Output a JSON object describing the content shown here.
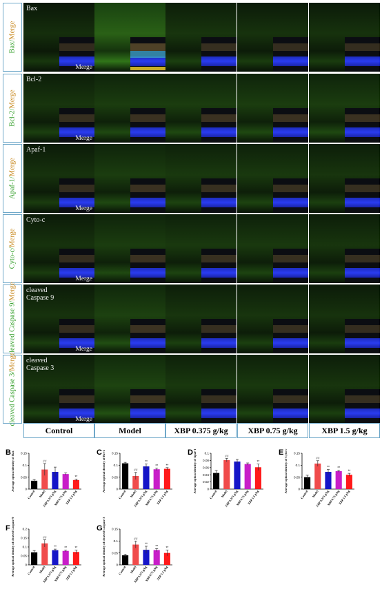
{
  "row_labels": [
    {
      "marker": "Bax",
      "sep": "/",
      "merge": "Merge"
    },
    {
      "marker": "Bcl-2",
      "sep": "/",
      "merge": "Merge"
    },
    {
      "marker": "Apaf-1",
      "sep": "/",
      "merge": "Merge"
    },
    {
      "marker": "Cyto-c",
      "sep": "/",
      "merge": "Merge"
    },
    {
      "marker": "cleaved Caspase 9",
      "sep": "/",
      "merge": "Merge"
    },
    {
      "marker": "cleaved Caspase 3",
      "sep": "/",
      "merge": "Merge"
    }
  ],
  "cell_labels": [
    "Bax",
    "Bcl-2",
    "Apaf-1",
    "Cyto-c",
    "cleaved\nCaspase 9",
    "cleaved\nCaspase 3"
  ],
  "merge_label": "Merge",
  "column_labels": [
    "Control",
    "Model",
    "XBP 0.375 g/kg",
    "XBP 0.75 g/kg",
    "XBP 1.5 g/kg"
  ],
  "colors": {
    "control": "#000000",
    "model": "#f04b4b",
    "xbp_low": "#1515c8",
    "xbp_mid": "#c81ec8",
    "xbp_high": "#ff1a1a",
    "green": "#37a02d",
    "orange": "#c8891f",
    "frame": "#6fa8c9"
  },
  "chart_data": [
    {
      "panel": "B",
      "type": "bar",
      "ylabel": "Average optical density of Bax",
      "categories": [
        "Control",
        "Model",
        "XBP 0.375 g/kg",
        "XBP 0.75 g/kg",
        "XBP 1.5 g/kg"
      ],
      "values": [
        0.035,
        0.082,
        0.072,
        0.063,
        0.038
      ],
      "errors": [
        0.005,
        0.025,
        0.02,
        0.005,
        0.004
      ],
      "ylim": [
        0,
        0.15
      ],
      "ticks": [
        0,
        0.05,
        0.1,
        0.15
      ],
      "marks": [
        "",
        "##",
        "",
        "",
        "**"
      ]
    },
    {
      "panel": "C",
      "type": "bar",
      "ylabel": "Average optical density of Bcl-2",
      "categories": [
        "Control",
        "Model",
        "XBP 0.375 g/kg",
        "XBP 0.75 g/kg",
        "XBP 1.5 g/kg"
      ],
      "values": [
        0.108,
        0.055,
        0.095,
        0.083,
        0.085
      ],
      "errors": [
        0.004,
        0.015,
        0.01,
        0.005,
        0.005
      ],
      "ylim": [
        0,
        0.15
      ],
      "ticks": [
        0,
        0.05,
        0.1,
        0.15
      ],
      "marks": [
        "",
        "##",
        "**",
        "**",
        "**"
      ]
    },
    {
      "panel": "D",
      "type": "bar",
      "ylabel": "Average optical density of Apaf-1",
      "categories": [
        "Control",
        "Model",
        "XBP 0.375 g/kg",
        "XBP 0.75 g/kg",
        "XBP 1.5 g/kg"
      ],
      "values": [
        0.045,
        0.081,
        0.077,
        0.07,
        0.061
      ],
      "errors": [
        0.007,
        0.005,
        0.006,
        0.003,
        0.009
      ],
      "ylim": [
        0,
        0.1
      ],
      "ticks": [
        0,
        0.02,
        0.04,
        0.06,
        0.08,
        0.1
      ],
      "marks": [
        "",
        "##",
        "",
        "",
        "**"
      ]
    },
    {
      "panel": "E",
      "type": "bar",
      "ylabel": "Average optical density of Cyto-c",
      "categories": [
        "Control",
        "Model",
        "XBP 0.375 g/kg",
        "XBP 0.75 g/kg",
        "XBP 1.5 g/kg"
      ],
      "values": [
        0.05,
        0.107,
        0.072,
        0.075,
        0.06
      ],
      "errors": [
        0.008,
        0.012,
        0.01,
        0.004,
        0.006
      ],
      "ylim": [
        0,
        0.15
      ],
      "ticks": [
        0,
        0.05,
        0.1,
        0.15
      ],
      "marks": [
        "",
        "##",
        "**",
        "**",
        "**"
      ]
    },
    {
      "panel": "F",
      "type": "bar",
      "ylabel": "Average optical density of cleaved Caspase 9",
      "categories": [
        "Control",
        "Model",
        "XBP 0.375 g/kg",
        "XBP 0.75 g/kg",
        "XBP 1.5 g/kg"
      ],
      "values": [
        0.07,
        0.12,
        0.082,
        0.078,
        0.072
      ],
      "errors": [
        0.01,
        0.02,
        0.006,
        0.004,
        0.01
      ],
      "ylim": [
        0,
        0.2
      ],
      "ticks": [
        0,
        0.05,
        0.1,
        0.15,
        0.2
      ],
      "marks": [
        "",
        "##",
        "**",
        "**",
        "**"
      ]
    },
    {
      "panel": "G",
      "type": "bar",
      "ylabel": "Average optical density of cleaved Caspase 3",
      "categories": [
        "Control",
        "Model",
        "XBP 0.375 g/kg",
        "XBP 0.75 g/kg",
        "XBP 1.5 g/kg"
      ],
      "values": [
        0.04,
        0.085,
        0.063,
        0.062,
        0.05
      ],
      "errors": [
        0.005,
        0.015,
        0.015,
        0.006,
        0.012
      ],
      "ylim": [
        0,
        0.15
      ],
      "ticks": [
        0,
        0.05,
        0.1,
        0.15
      ],
      "marks": [
        "",
        "##",
        "**",
        "**",
        "**"
      ]
    }
  ]
}
